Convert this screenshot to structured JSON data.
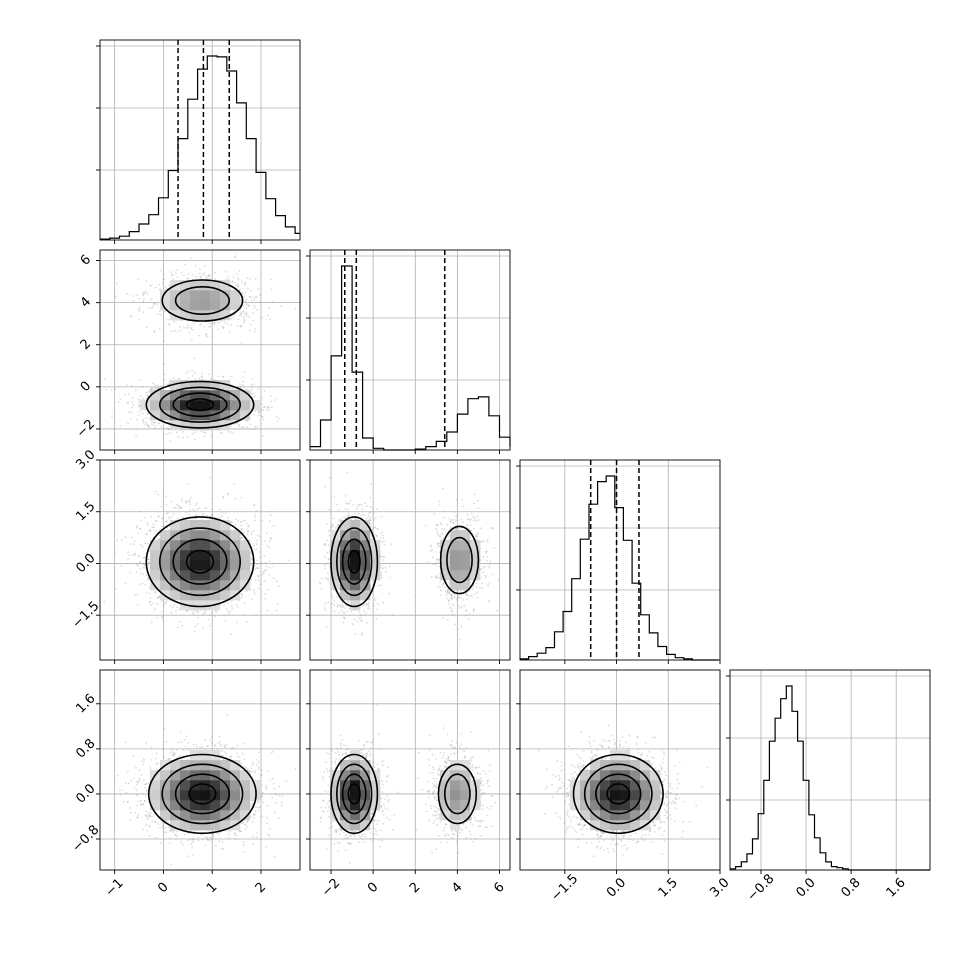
{
  "chart_data": {
    "type": "corner",
    "dims": 4,
    "axes": [
      {
        "lim": [
          -1.3,
          2.8
        ],
        "ticks": [
          -1,
          0,
          1,
          2
        ],
        "tick_labels": [
          "−1",
          "0",
          "1",
          "2"
        ]
      },
      {
        "lim": [
          -3.0,
          6.5
        ],
        "ticks": [
          -2,
          0,
          2,
          4,
          6
        ],
        "tick_labels": [
          "−2",
          "0",
          "2",
          "4",
          "6"
        ]
      },
      {
        "lim": [
          -2.8,
          3.0
        ],
        "ticks": [
          -1.5,
          0.0,
          1.5,
          3.0
        ],
        "tick_labels": [
          "−1.5",
          "0.0",
          "1.5",
          "3.0"
        ]
      },
      {
        "lim": [
          -1.35,
          2.2
        ],
        "ticks": [
          -0.8,
          0.0,
          0.8,
          1.6
        ],
        "tick_labels": [
          "−0.8",
          "0.0",
          "0.8",
          "1.6"
        ]
      }
    ],
    "histograms": [
      {
        "edges_start": -1.3,
        "bin_width": 0.2,
        "counts": [
          1,
          2,
          4,
          9,
          17,
          27,
          45,
          74,
          108,
          150,
          182,
          196,
          195,
          180,
          146,
          108,
          72,
          44,
          26,
          14,
          7,
          3,
          1
        ],
        "quantiles": [
          0.3,
          0.82,
          1.35
        ]
      },
      {
        "edges_start": -3.0,
        "bin_width": 0.5,
        "counts": [
          4,
          35,
          110,
          215,
          91,
          14,
          2,
          0,
          0,
          0,
          1,
          4,
          10,
          21,
          42,
          60,
          62,
          40,
          15,
          4,
          1
        ],
        "quantiles": [
          -1.35,
          -0.8,
          3.4
        ]
      },
      {
        "edges_start": -2.8,
        "bin_width": 0.25,
        "counts": [
          1,
          3,
          6,
          11,
          25,
          43,
          72,
          107,
          138,
          158,
          163,
          135,
          106,
          68,
          40,
          24,
          12,
          5,
          2,
          1,
          0,
          0,
          0
        ],
        "quantiles": [
          -0.75,
          0.0,
          0.65
        ]
      },
      {
        "edges_start": -1.35,
        "bin_width": 0.1,
        "counts": [
          1,
          3,
          7,
          14,
          27,
          49,
          78,
          112,
          132,
          149,
          160,
          138,
          112,
          78,
          48,
          28,
          15,
          7,
          3,
          2,
          1,
          0,
          0,
          0,
          0,
          0,
          0,
          0,
          0,
          0,
          0,
          0,
          0,
          0,
          0,
          0
        ]
      }
    ],
    "pairs": [
      {
        "x": 0,
        "y": 1,
        "components": [
          {
            "w": 0.68,
            "mx": 0.75,
            "my": -0.85,
            "sx": 0.55,
            "sy": 0.55
          },
          {
            "w": 0.32,
            "mx": 0.8,
            "my": 4.1,
            "sx": 0.55,
            "sy": 0.65
          }
        ]
      },
      {
        "x": 0,
        "y": 2,
        "components": [
          {
            "w": 1.0,
            "mx": 0.75,
            "my": 0.05,
            "sx": 0.55,
            "sy": 0.65
          }
        ]
      },
      {
        "x": 1,
        "y": 2,
        "components": [
          {
            "w": 0.68,
            "mx": -0.9,
            "my": 0.05,
            "sx": 0.55,
            "sy": 0.65
          },
          {
            "w": 0.32,
            "mx": 4.1,
            "my": 0.1,
            "sx": 0.6,
            "sy": 0.65
          }
        ]
      },
      {
        "x": 0,
        "y": 3,
        "components": [
          {
            "w": 1.0,
            "mx": 0.8,
            "my": 0.0,
            "sx": 0.55,
            "sy": 0.35
          }
        ]
      },
      {
        "x": 1,
        "y": 3,
        "components": [
          {
            "w": 0.68,
            "mx": -0.9,
            "my": 0.0,
            "sx": 0.55,
            "sy": 0.35
          },
          {
            "w": 0.32,
            "mx": 4.0,
            "my": 0.0,
            "sx": 0.6,
            "sy": 0.35
          }
        ]
      },
      {
        "x": 2,
        "y": 3,
        "components": [
          {
            "w": 1.0,
            "mx": 0.05,
            "my": 0.0,
            "sx": 0.65,
            "sy": 0.35
          }
        ]
      }
    ],
    "grid": true
  }
}
